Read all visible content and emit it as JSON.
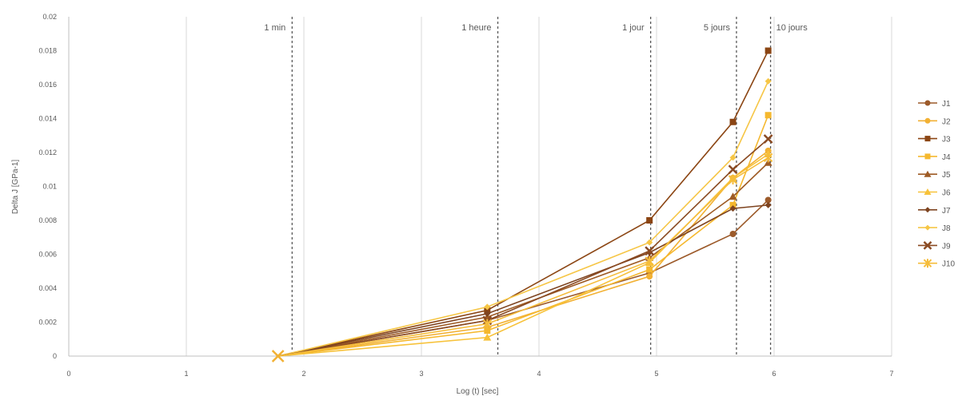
{
  "chart_data": {
    "type": "line",
    "title": "",
    "xlabel": "Log (t) [sec]",
    "ylabel": "Delta J [GPa-1]",
    "xlim": [
      0,
      7
    ],
    "ylim": [
      0,
      0.02
    ],
    "x_ticks": [
      0,
      1,
      2,
      3,
      4,
      5,
      6,
      7
    ],
    "y_ticks": [
      0,
      0.002,
      0.004,
      0.006,
      0.008,
      0.01,
      0.012,
      0.014,
      0.016,
      0.018,
      0.02
    ],
    "x_tick_labels": [
      "0",
      "1",
      "2",
      "3",
      "4",
      "5",
      "6",
      "7"
    ],
    "y_tick_labels": [
      "0",
      "0.002",
      "0.004",
      "0.006",
      "0.008",
      "0.01",
      "0.012",
      "0.014",
      "0.016",
      "0.018",
      "0.02"
    ],
    "grid": "vertical",
    "legend_position": "right",
    "reference_lines": [
      {
        "x": 1.9,
        "label": "1 min"
      },
      {
        "x": 3.65,
        "label": "1 heure"
      },
      {
        "x": 4.95,
        "label": "1 jour"
      },
      {
        "x": 5.68,
        "label": "5 jours"
      },
      {
        "x": 5.97,
        "label": "10 jours"
      }
    ],
    "series": [
      {
        "name": "J1",
        "color": "#9C5A2A",
        "marker": "circle",
        "x": [
          1.78,
          3.56,
          4.94,
          5.65,
          5.95
        ],
        "y": [
          0,
          0.0021,
          0.0049,
          0.0072,
          0.0092
        ]
      },
      {
        "name": "J2",
        "color": "#F2B134",
        "marker": "circle",
        "x": [
          1.78,
          3.56,
          4.94,
          5.65,
          5.95
        ],
        "y": [
          0,
          0.0017,
          0.0047,
          0.0105,
          0.0121
        ]
      },
      {
        "name": "J3",
        "color": "#8B4513",
        "marker": "square",
        "x": [
          1.78,
          3.56,
          4.94,
          5.65,
          5.95
        ],
        "y": [
          0,
          0.0027,
          0.008,
          0.0138,
          0.018
        ]
      },
      {
        "name": "J4",
        "color": "#F5B82E",
        "marker": "square",
        "x": [
          1.78,
          3.56,
          4.94,
          5.65,
          5.95
        ],
        "y": [
          0,
          0.0015,
          0.0051,
          0.0089,
          0.0142
        ]
      },
      {
        "name": "J5",
        "color": "#9E5B25",
        "marker": "triangle",
        "x": [
          1.78,
          3.56,
          4.94,
          5.65,
          5.95
        ],
        "y": [
          0,
          0.0023,
          0.0058,
          0.0094,
          0.0114
        ]
      },
      {
        "name": "J6",
        "color": "#F7C23A",
        "marker": "triangle",
        "x": [
          1.78,
          3.56,
          4.94,
          5.65,
          5.95
        ],
        "y": [
          0,
          0.0011,
          0.0055,
          0.0105,
          0.0119
        ]
      },
      {
        "name": "J7",
        "color": "#7E4420",
        "marker": "diamond",
        "x": [
          1.78,
          3.56,
          4.94,
          5.65,
          5.95
        ],
        "y": [
          0,
          0.0025,
          0.0061,
          0.0087,
          0.0089
        ]
      },
      {
        "name": "J8",
        "color": "#F6C646",
        "marker": "diamond",
        "x": [
          1.78,
          3.56,
          4.94,
          5.65,
          5.95
        ],
        "y": [
          0,
          0.0029,
          0.0067,
          0.0117,
          0.0162
        ]
      },
      {
        "name": "J9",
        "color": "#8A4A22",
        "marker": "x",
        "x": [
          1.78,
          3.56,
          4.94,
          5.65,
          5.95
        ],
        "y": [
          0,
          0.0021,
          0.0062,
          0.011,
          0.0128
        ]
      },
      {
        "name": "J10",
        "color": "#F5BC3A",
        "marker": "star",
        "x": [
          1.78,
          3.56,
          4.94,
          5.65,
          5.95
        ],
        "y": [
          0,
          0.0019,
          0.0056,
          0.0104,
          0.0117
        ]
      }
    ]
  }
}
